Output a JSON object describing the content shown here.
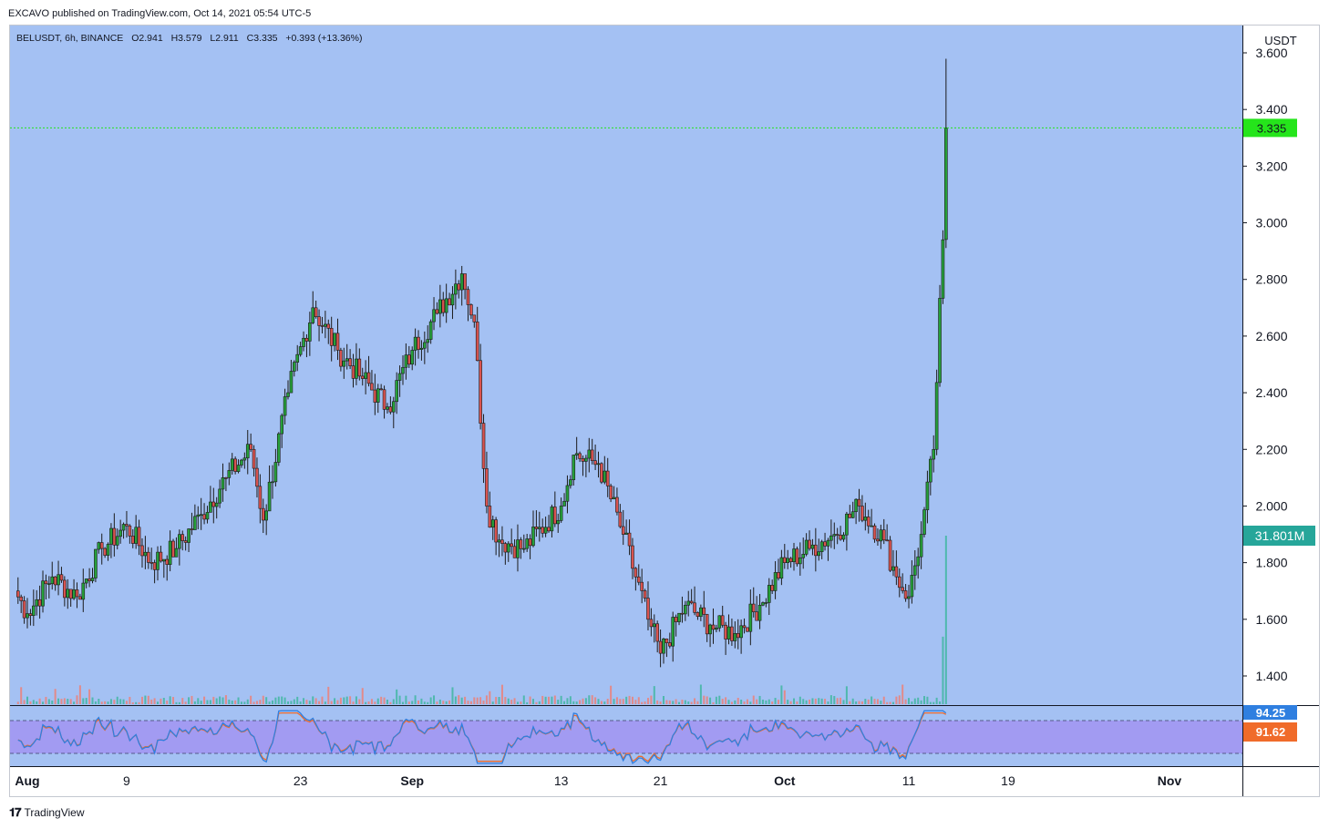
{
  "header": {
    "published": "EXCAVO published on TradingView.com, Oct 14, 2021 05:54 UTC-5"
  },
  "legend": {
    "symbol": "BELUSDT, 6h, BINANCE",
    "open": "O2.941",
    "high": "H3.579",
    "low": "L2.911",
    "close": "C3.335",
    "change": "+0.393 (+13.36%)"
  },
  "price_axis": {
    "currency": "USDT",
    "ticks": [
      "3.600",
      "3.400",
      "3.200",
      "3.000",
      "2.800",
      "2.600",
      "2.400",
      "2.200",
      "2.000",
      "1.800",
      "1.600",
      "1.400"
    ],
    "last_price_label": "3.335",
    "volume_label": "31.801M"
  },
  "rsi_axis": {
    "k_label": "94.25",
    "d_label": "91.62"
  },
  "time_axis": {
    "labels": [
      "Aug",
      "9",
      "23",
      "Sep",
      "13",
      "21",
      "Oct",
      "11",
      "19",
      "Nov"
    ]
  },
  "footer": {
    "brand": "TradingView"
  },
  "colors": {
    "plot_background": "#a4c1f3",
    "up": "#26a03a",
    "down": "#d9534f",
    "last_price": "#25e51b",
    "volume_badge": "#26a69a",
    "rsi_fill": "#a29bf2",
    "rsi_k": "#2f7fe0",
    "rsi_d": "#f06b2a"
  },
  "chart_data": {
    "type": "candlestick",
    "symbol": "BELUSDT",
    "interval": "6h",
    "exchange": "BINANCE",
    "ylim": [
      1.3,
      3.65
    ],
    "last_close": 3.335,
    "anchor_path": [
      [
        "Jul 31",
        1.7
      ],
      [
        "Aug 1",
        1.62
      ],
      [
        "Aug 3",
        1.75
      ],
      [
        "Aug 5",
        1.68
      ],
      [
        "Aug 7",
        1.85
      ],
      [
        "Aug 9",
        1.93
      ],
      [
        "Aug 11",
        1.8
      ],
      [
        "Aug 13",
        1.85
      ],
      [
        "Aug 15",
        1.97
      ],
      [
        "Aug 17",
        2.1
      ],
      [
        "Aug 19",
        2.2
      ],
      [
        "Aug 20",
        1.95
      ],
      [
        "Aug 22",
        2.4
      ],
      [
        "Aug 24",
        2.7
      ],
      [
        "Aug 26",
        2.55
      ],
      [
        "Aug 28",
        2.45
      ],
      [
        "Aug 30",
        2.35
      ],
      [
        "Sep 1",
        2.55
      ],
      [
        "Sep 3",
        2.68
      ],
      [
        "Sep 5",
        2.82
      ],
      [
        "Sep 6",
        2.65
      ],
      [
        "Sep 7",
        2.0
      ],
      [
        "Sep 8",
        1.88
      ],
      [
        "Sep 10",
        1.85
      ],
      [
        "Sep 13",
        2.0
      ],
      [
        "Sep 14",
        2.18
      ],
      [
        "Sep 16",
        2.15
      ],
      [
        "Sep 18",
        1.9
      ],
      [
        "Sep 20",
        1.6
      ],
      [
        "Sep 21",
        1.48
      ],
      [
        "Sep 23",
        1.65
      ],
      [
        "Sep 25",
        1.58
      ],
      [
        "Sep 27",
        1.55
      ],
      [
        "Sep 29",
        1.65
      ],
      [
        "Oct 1",
        1.8
      ],
      [
        "Oct 3",
        1.85
      ],
      [
        "Oct 5",
        1.9
      ],
      [
        "Oct 7",
        2.0
      ],
      [
        "Oct 9",
        1.88
      ],
      [
        "Oct 10",
        1.75
      ],
      [
        "Oct 11",
        1.68
      ],
      [
        "Oct 12",
        1.9
      ],
      [
        "Oct 13",
        2.2
      ],
      [
        "Oct 13 18:00",
        2.94
      ],
      [
        "Oct 14",
        3.335
      ]
    ],
    "final_candle": {
      "open": 2.941,
      "high": 3.579,
      "low": 2.911,
      "close": 3.335
    },
    "volume": {
      "last": "31.801M"
    },
    "rsi": {
      "k": 94.25,
      "d": 91.62,
      "band_upper": 80,
      "band_lower": 20
    }
  }
}
